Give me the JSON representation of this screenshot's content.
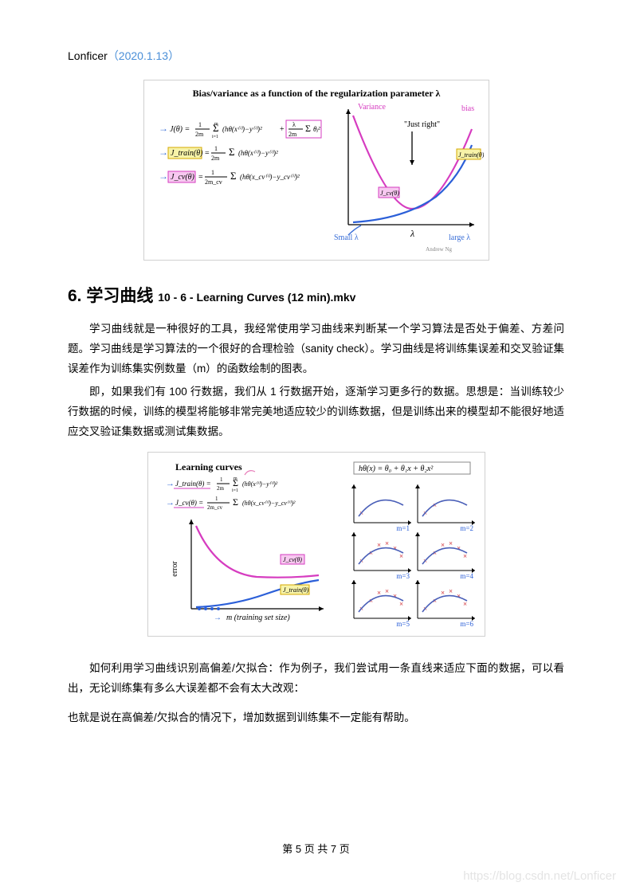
{
  "header": {
    "author": "Lonficer",
    "date": "（2020.1.13）"
  },
  "figure1": {
    "title": "Bias/variance as a function of the regularization parameter  λ",
    "eq1": "J(θ) = (1/2m) Σᵢ₌₁ᵐ (hθ(x⁽ⁱ⁾) − y⁽ⁱ⁾)² + (λ/2m) Σⱼ₌₁ⁿ θⱼ²",
    "eq2": "J_train(θ) = (1/2m) Σᵢ₌₁ᵐ (hθ(x⁽ⁱ⁾) − y⁽ⁱ⁾)²",
    "eq3": "J_cv(θ) = (1/2m_cv) Σᵢ₌₁ᵐ (hθ(x_cv⁽ⁱ⁾) − y_cv⁽ⁱ⁾)²",
    "annotations": {
      "variance": "Variance",
      "bias": "bias",
      "just_right": "\"Just right\"",
      "jtrain": "J_train(θ)",
      "jcv": "J_cv(θ)",
      "small": "Small λ",
      "large": "large λ",
      "xaxis": "λ"
    },
    "colors": {
      "jcv_curve": "#d63cc0",
      "jtrain_curve": "#2b5fd8",
      "arrow": "#3a6fd8",
      "box_fill": "#f7f3a8",
      "box_border": "#d6a800",
      "cvbox_fill": "#f7c8f0"
    },
    "credit": "Andrew Ng"
  },
  "section": {
    "number": "6.",
    "title_cn": "学习曲线",
    "title_sub": "10 - 6 - Learning Curves (12 min).mkv"
  },
  "paragraphs": {
    "p1": "学习曲线就是一种很好的工具，我经常使用学习曲线来判断某一个学习算法是否处于偏差、方差问题。学习曲线是学习算法的一个很好的合理检验（sanity check）。学习曲线是将训练集误差和交叉验证集误差作为训练集实例数量（m）的函数绘制的图表。",
    "p2": "即，如果我们有 100 行数据，我们从 1 行数据开始，逐渐学习更多行的数据。思想是：当训练较少行数据的时候，训练的模型将能够非常完美地适应较少的训练数据，但是训练出来的模型却不能很好地适应交叉验证集数据或测试集数据。",
    "p3": "如何利用学习曲线识别高偏差/欠拟合：作为例子，我们尝试用一条直线来适应下面的数据，可以看出，无论训练集有多么大误差都不会有太大改观：",
    "p4": "也就是说在高偏差/欠拟合的情况下，增加数据到训练集不一定能有帮助。"
  },
  "figure2": {
    "title": "Learning curves",
    "eq1": "J_train(θ) = (1/2m) Σᵢ₌₁ᵐ (hθ(x⁽ⁱ⁾) − y⁽ⁱ⁾)²",
    "eq2": "J_cv(θ) = (1/2m_cv) Σᵢ₌₁ᵐ (hθ(x_cv⁽ⁱ⁾) − y_cv⁽ⁱ⁾)²",
    "ylab": "error",
    "xlab": "m (training set size)",
    "jcv_label": "J_cv(θ)",
    "jtrain_label": "J_train(θ)",
    "right_eq": "hθ(x) = θ₀ + θ₁x + θ₂x²",
    "mini_labels": [
      "m=1",
      "m=2",
      "m=3",
      "m=4",
      "m=5",
      "m=6"
    ],
    "colors": {
      "jcv_curve": "#d63cc0",
      "jtrain_curve": "#2b5fd8",
      "arrow": "#3a6fd8",
      "pink": "#e77bb8",
      "data_pt": "#d4444a",
      "fit": "#4a5fb8"
    }
  },
  "footer": {
    "text": "第 5 页 共 7 页"
  },
  "watermark": "https://blog.csdn.net/Lonficer"
}
